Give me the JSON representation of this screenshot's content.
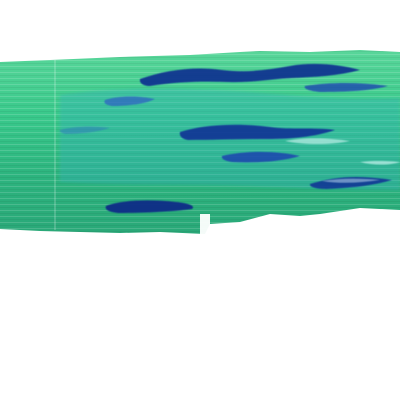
{
  "image": {
    "subject": "painted-stripe-band",
    "palette": {
      "background": "#ffffff",
      "green_light": "#5fe09a",
      "green_mid": "#2fbf7f",
      "green_dark": "#1f9f6a",
      "teal": "#36b7b2",
      "blue_dark": "#0d2f8f",
      "blue_mid": "#2f5fd0"
    }
  }
}
